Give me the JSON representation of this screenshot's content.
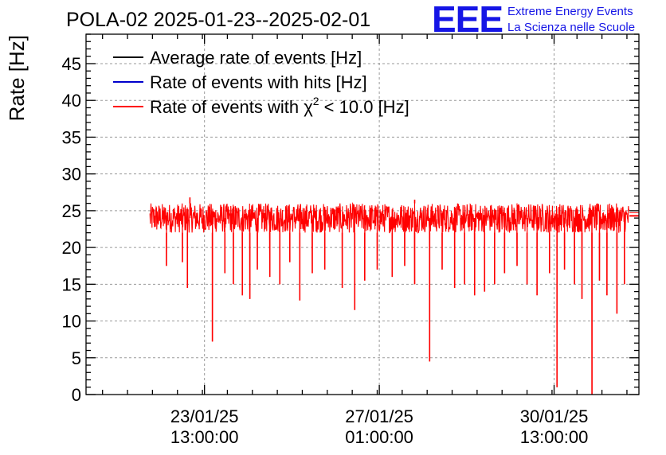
{
  "chart_data": {
    "type": "line",
    "title": "POLA-02 2025-01-23--2025-02-01",
    "ylabel": "Rate [Hz]",
    "xlabel": "",
    "ylim": [
      0,
      49
    ],
    "yticks": [
      0,
      5,
      10,
      15,
      20,
      25,
      30,
      35,
      40,
      45
    ],
    "xlim_days_from_2025_01_22_00h": [
      -0.83,
      10.24
    ],
    "xticks": [
      {
        "day": 1.5417,
        "date": "23/01/25",
        "time": "13:00:00"
      },
      {
        "day": 5.0417,
        "date": "27/01/25",
        "time": "01:00:00"
      },
      {
        "day": 8.5417,
        "date": "30/01/25",
        "time": "13:00:00"
      }
    ],
    "legend": {
      "placement": "top-left",
      "entries": [
        {
          "label": "Average rate of events [Hz]",
          "color": "#000000"
        },
        {
          "label": "Rate of events with hits [Hz]",
          "color": "#0000cc"
        },
        {
          "label": "Rate of events with χ",
          "sup": "2",
          "suffix": " < 10.0 [Hz]",
          "color": "#ff0000"
        }
      ]
    },
    "series": [
      {
        "name": "Rate of events with chi2 < 10.0 [Hz]",
        "color": "#ff0000",
        "baseline_hz": 24.0,
        "band_hz": [
          22.0,
          26.0
        ],
        "start_day": 0.45,
        "end_day": 10.24,
        "dense_data_end_day": 10.05,
        "tail_value_hz": 24.3,
        "peaks": [
          {
            "day": 1.25,
            "value": 26.8
          },
          {
            "day": 5.75,
            "value": 26.5
          },
          {
            "day": 7.8,
            "value": 26.0
          }
        ],
        "dips": [
          {
            "day": 0.78,
            "value": 17.5
          },
          {
            "day": 1.1,
            "value": 18.0
          },
          {
            "day": 1.2,
            "value": 14.5
          },
          {
            "day": 1.7,
            "value": 7.2
          },
          {
            "day": 1.95,
            "value": 16.5
          },
          {
            "day": 2.12,
            "value": 15.0
          },
          {
            "day": 2.3,
            "value": 13.5
          },
          {
            "day": 2.45,
            "value": 13.0
          },
          {
            "day": 2.6,
            "value": 17.0
          },
          {
            "day": 2.85,
            "value": 16.0
          },
          {
            "day": 3.05,
            "value": 15.0
          },
          {
            "day": 3.25,
            "value": 18.0
          },
          {
            "day": 3.45,
            "value": 12.8
          },
          {
            "day": 3.7,
            "value": 16.5
          },
          {
            "day": 3.95,
            "value": 17.0
          },
          {
            "day": 4.3,
            "value": 14.5
          },
          {
            "day": 4.55,
            "value": 11.5
          },
          {
            "day": 4.75,
            "value": 15.5
          },
          {
            "day": 5.0,
            "value": 17.0
          },
          {
            "day": 5.3,
            "value": 16.0
          },
          {
            "day": 5.55,
            "value": 17.5
          },
          {
            "day": 5.75,
            "value": 15.0
          },
          {
            "day": 6.05,
            "value": 4.5
          },
          {
            "day": 6.3,
            "value": 17.0
          },
          {
            "day": 6.55,
            "value": 14.5
          },
          {
            "day": 6.75,
            "value": 15.0
          },
          {
            "day": 6.95,
            "value": 13.5
          },
          {
            "day": 7.15,
            "value": 14.0
          },
          {
            "day": 7.35,
            "value": 15.0
          },
          {
            "day": 7.55,
            "value": 16.5
          },
          {
            "day": 7.8,
            "value": 17.5
          },
          {
            "day": 8.0,
            "value": 15.0
          },
          {
            "day": 8.2,
            "value": 13.5
          },
          {
            "day": 8.45,
            "value": 16.5
          },
          {
            "day": 8.6,
            "value": 1.0
          },
          {
            "day": 8.75,
            "value": 17.0
          },
          {
            "day": 8.95,
            "value": 15.0
          },
          {
            "day": 9.1,
            "value": 13.0
          },
          {
            "day": 9.3,
            "value": 0.0
          },
          {
            "day": 9.45,
            "value": 15.5
          },
          {
            "day": 9.6,
            "value": 13.5
          },
          {
            "day": 9.8,
            "value": 11.0
          },
          {
            "day": 9.95,
            "value": 15.0
          }
        ]
      }
    ]
  },
  "branding": {
    "logo_text": "EEE",
    "line1": "Extreme Energy Events",
    "line2": "La Scienza nelle Scuole",
    "color": "#1515e6"
  }
}
